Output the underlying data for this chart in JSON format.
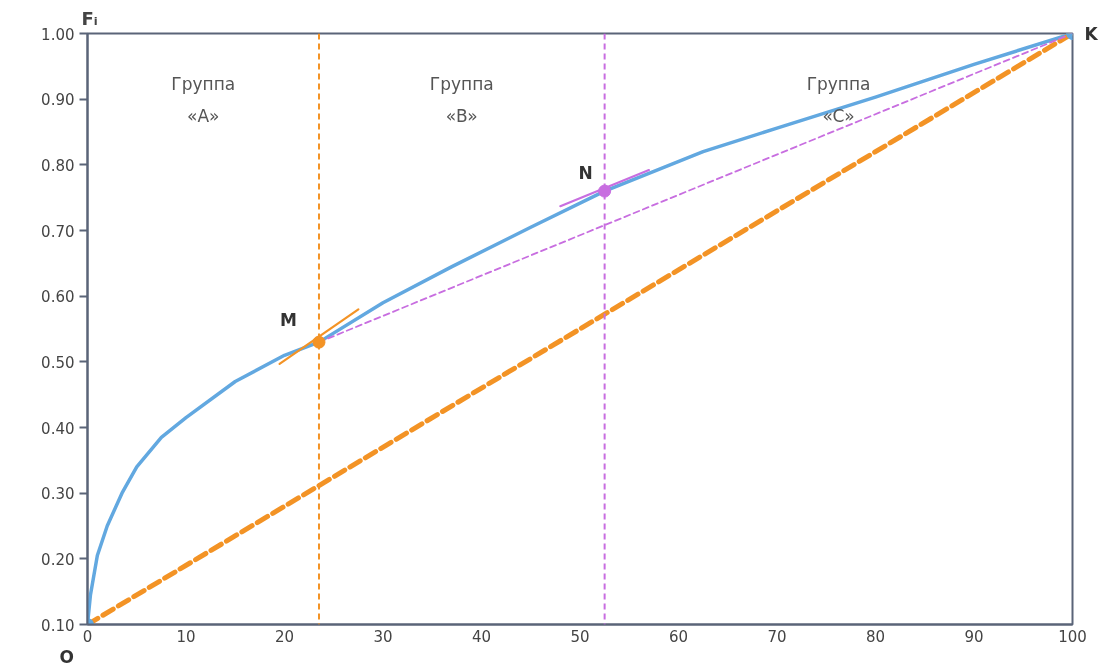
{
  "chart_data": {
    "type": "line",
    "ylabel": "Fᵢ",
    "xlim": [
      0,
      100
    ],
    "ylim": [
      0.1,
      1.0
    ],
    "xticks": [
      0,
      10,
      20,
      30,
      40,
      50,
      60,
      70,
      80,
      90,
      100
    ],
    "yticks": [
      {
        "value": 0.1,
        "label": "0.10"
      },
      {
        "value": 0.2,
        "label": "0.20"
      },
      {
        "value": 0.3,
        "label": "0.30"
      },
      {
        "value": 0.4,
        "label": "0.40"
      },
      {
        "value": 0.5,
        "label": "0.50"
      },
      {
        "value": 0.6,
        "label": "0.60"
      },
      {
        "value": 0.7,
        "label": "0.70"
      },
      {
        "value": 0.8,
        "label": "0.80"
      },
      {
        "value": 0.9,
        "label": "0.90"
      },
      {
        "value": 1.0,
        "label": "1.00"
      }
    ],
    "grid": false,
    "series": [
      {
        "color": "#62a8e0",
        "line_style": "solid",
        "x": [
          0,
          0.3,
          1,
          2,
          3.5,
          5,
          7.5,
          10,
          15,
          20,
          23.5,
          30,
          37,
          45,
          52.5,
          62.5,
          70,
          80,
          90,
          100
        ],
        "values": [
          0.1,
          0.145,
          0.205,
          0.25,
          0.3,
          0.34,
          0.385,
          0.415,
          0.47,
          0.51,
          0.53,
          0.59,
          0.645,
          0.705,
          0.76,
          0.82,
          0.856,
          0.903,
          0.953,
          1.0
        ]
      },
      {
        "color": "#f39325",
        "line_style": "dashed",
        "x": [
          0,
          100
        ],
        "values": [
          0.1,
          1.0
        ]
      },
      {
        "color": "#c86ee0",
        "line_style": "dashed",
        "x": [
          23.5,
          100
        ],
        "values": [
          0.53,
          1.0
        ]
      },
      {
        "color": "#f39325",
        "line_style": "solid",
        "x": [
          19.5,
          27.5
        ],
        "values": [
          0.497,
          0.58
        ]
      },
      {
        "color": "#c86ee0",
        "line_style": "solid",
        "x": [
          48,
          57
        ],
        "values": [
          0.737,
          0.792
        ]
      },
      {
        "type": "scatter",
        "marker": "circle",
        "colors": [
          "#62a8e0",
          "#f39325",
          "#c86ee0",
          "#62a8e0"
        ],
        "x": [
          0,
          23.5,
          52.5,
          100
        ],
        "values": [
          0.1,
          0.53,
          0.76,
          1.0
        ]
      }
    ],
    "ref_lines": [
      {
        "axis": "x",
        "value": 23.5,
        "color": "#f39325",
        "line_style": "dashed"
      },
      {
        "axis": "x",
        "value": 52.5,
        "color": "#c86ee0",
        "line_style": "dashed"
      }
    ],
    "annotations": [
      "Группа\n«A»",
      "Группа\n«B»",
      "Группа\n«C»",
      {
        "text": "O",
        "x": 0,
        "y": 0.1
      },
      {
        "text": "M",
        "x": 23.5,
        "y": 0.53
      },
      {
        "text": "N",
        "x": 52.5,
        "y": 0.76
      },
      {
        "text": "K",
        "x": 100,
        "y": 1.0
      }
    ]
  }
}
